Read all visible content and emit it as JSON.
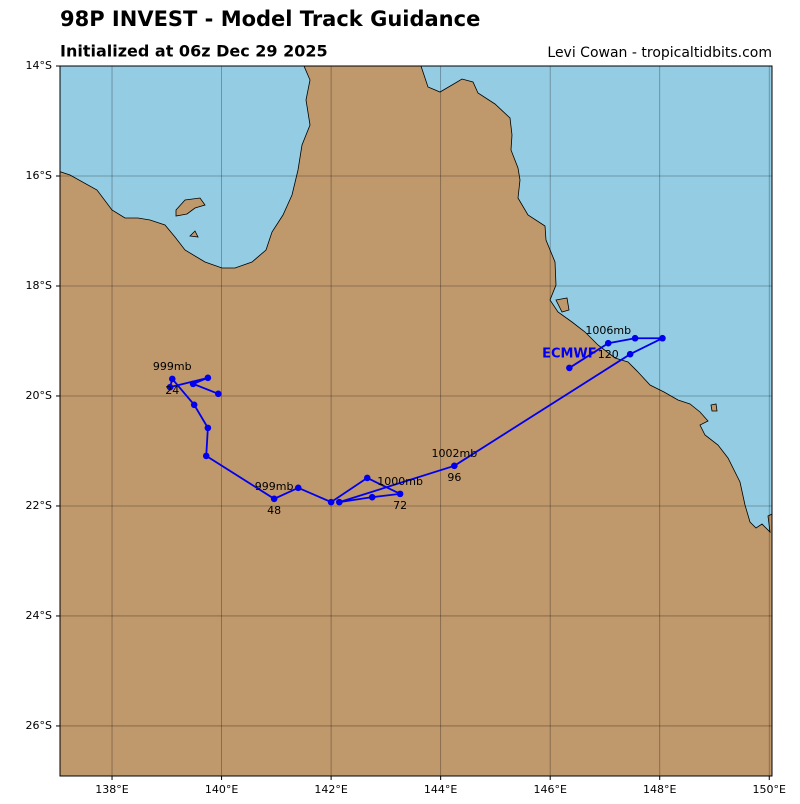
{
  "chart_data": {
    "type": "track",
    "title": "98P INVEST - Model Track Guidance",
    "subtitle": "Initialized at 06z Dec 29 2025",
    "credit": "Levi Cowan - tropicaltidbits.com",
    "xlim": [
      137.05,
      150.05
    ],
    "ylim": [
      -26.91,
      -14
    ],
    "xticks": [
      {
        "value": 138,
        "label": "138°E"
      },
      {
        "value": 140,
        "label": "140°E"
      },
      {
        "value": 142,
        "label": "142°E"
      },
      {
        "value": 144,
        "label": "144°E"
      },
      {
        "value": 146,
        "label": "146°E"
      },
      {
        "value": 148,
        "label": "148°E"
      },
      {
        "value": 150,
        "label": "150°E"
      }
    ],
    "yticks": [
      {
        "value": -14,
        "label": "14°S"
      },
      {
        "value": -16,
        "label": "16°S"
      },
      {
        "value": -18,
        "label": "18°S"
      },
      {
        "value": -20,
        "label": "20°S"
      },
      {
        "value": -22,
        "label": "22°S"
      },
      {
        "value": -24,
        "label": "24°S"
      },
      {
        "value": -26,
        "label": "26°S"
      }
    ],
    "grid": true,
    "series": [
      {
        "name": "ECMWF",
        "color": "#0000ee",
        "x": [
          139.94,
          139.48,
          139.75,
          139.06,
          139.1,
          139.5,
          139.75,
          139.72,
          140.96,
          141.4,
          142.0,
          142.66,
          143.26,
          142.75,
          142.15,
          144.25,
          147.46,
          148.05,
          147.55,
          147.06,
          146.35
        ],
        "values": [
          -19.96,
          -19.78,
          -19.67,
          -19.84,
          -19.69,
          -20.16,
          -20.58,
          -21.09,
          -21.87,
          -21.67,
          -21.93,
          -21.49,
          -21.78,
          -21.84,
          -21.93,
          -21.27,
          -19.24,
          -18.95,
          -18.95,
          -19.04,
          -19.49
        ],
        "pressure_labels": [
          null,
          null,
          null,
          null,
          "999mb",
          null,
          null,
          null,
          "999mb",
          null,
          null,
          null,
          "1000mb",
          null,
          null,
          "1002mb",
          null,
          null,
          null,
          "1006mb",
          null
        ],
        "hour_labels": [
          null,
          null,
          null,
          null,
          24,
          null,
          null,
          null,
          48,
          null,
          null,
          null,
          72,
          null,
          null,
          96,
          null,
          null,
          null,
          120,
          null
        ]
      }
    ]
  }
}
